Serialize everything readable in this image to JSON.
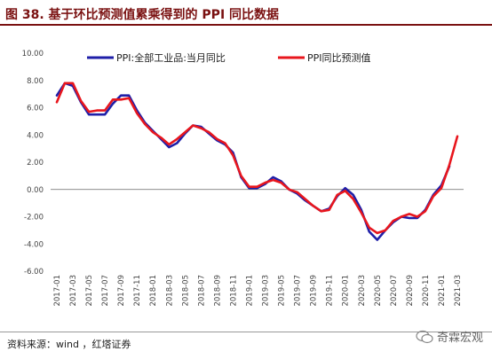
{
  "title": "图 38. 基于环比预测值累乘得到的 PPI 同比数据",
  "source": "资料来源：wind ，红塔证券",
  "watermark": "奇霖宏观",
  "colors": {
    "title": "#7a1111",
    "actual": "#1f1fa8",
    "forecast": "#e8161d"
  },
  "chart_data": {
    "type": "line",
    "title": "",
    "xlabel": "",
    "ylabel": "",
    "ylim": [
      -6,
      10
    ],
    "yticks": [
      "10.00",
      "8.00",
      "6.00",
      "4.00",
      "2.00",
      "0.00",
      "-2.00",
      "-4.00",
      "-6.00"
    ],
    "grid": false,
    "legend_position": "top-center",
    "x": [
      "2017-01",
      "2017-02",
      "2017-03",
      "2017-04",
      "2017-05",
      "2017-06",
      "2017-07",
      "2017-08",
      "2017-09",
      "2017-10",
      "2017-11",
      "2017-12",
      "2018-01",
      "2018-02",
      "2018-03",
      "2018-04",
      "2018-05",
      "2018-06",
      "2018-07",
      "2018-08",
      "2018-09",
      "2018-10",
      "2018-11",
      "2018-12",
      "2019-01",
      "2019-02",
      "2019-03",
      "2019-04",
      "2019-05",
      "2019-06",
      "2019-07",
      "2019-08",
      "2019-09",
      "2019-10",
      "2019-11",
      "2019-12",
      "2020-01",
      "2020-02",
      "2020-03",
      "2020-04",
      "2020-05",
      "2020-06",
      "2020-07",
      "2020-08",
      "2020-09",
      "2020-10",
      "2020-11",
      "2020-12",
      "2021-01",
      "2021-02",
      "2021-03"
    ],
    "xticks": [
      "2017-01",
      "2017-03",
      "2017-05",
      "2017-07",
      "2017-09",
      "2017-11",
      "2018-01",
      "2018-03",
      "2018-05",
      "2018-07",
      "2018-09",
      "2018-11",
      "2019-01",
      "2019-03",
      "2019-05",
      "2019-07",
      "2019-09",
      "2019-11",
      "2020-01",
      "2020-03",
      "2020-05",
      "2020-07",
      "2020-09",
      "2020-11",
      "2021-01",
      "2021-03"
    ],
    "series": [
      {
        "name": "PPI:全部工业品:当月同比",
        "color": "#1f1fa8",
        "values": [
          6.9,
          7.8,
          7.6,
          6.4,
          5.5,
          5.5,
          5.5,
          6.3,
          6.9,
          6.9,
          5.8,
          4.9,
          4.3,
          3.7,
          3.1,
          3.4,
          4.1,
          4.7,
          4.6,
          4.1,
          3.6,
          3.3,
          2.7,
          0.9,
          0.1,
          0.1,
          0.4,
          0.9,
          0.6,
          0.0,
          -0.3,
          -0.8,
          -1.2,
          -1.6,
          -1.4,
          -0.5,
          0.1,
          -0.4,
          -1.5,
          -3.1,
          -3.7,
          -3.0,
          -2.4,
          -2.0,
          -2.1,
          -2.1,
          -1.5,
          -0.4,
          0.3,
          1.7,
          null
        ]
      },
      {
        "name": "PPI同比预测值",
        "color": "#e8161d",
        "values": [
          6.4,
          7.8,
          7.8,
          6.5,
          5.7,
          5.8,
          5.8,
          6.6,
          6.6,
          6.7,
          5.6,
          4.8,
          4.2,
          3.8,
          3.3,
          3.7,
          4.2,
          4.7,
          4.5,
          4.2,
          3.7,
          3.4,
          2.5,
          1.0,
          0.2,
          0.2,
          0.5,
          0.7,
          0.5,
          0.0,
          -0.2,
          -0.7,
          -1.2,
          -1.6,
          -1.5,
          -0.4,
          -0.1,
          -0.7,
          -1.7,
          -2.8,
          -3.2,
          -3.0,
          -2.3,
          -2.0,
          -1.8,
          -2.0,
          -1.6,
          -0.5,
          0.1,
          1.8,
          3.9
        ]
      }
    ]
  }
}
